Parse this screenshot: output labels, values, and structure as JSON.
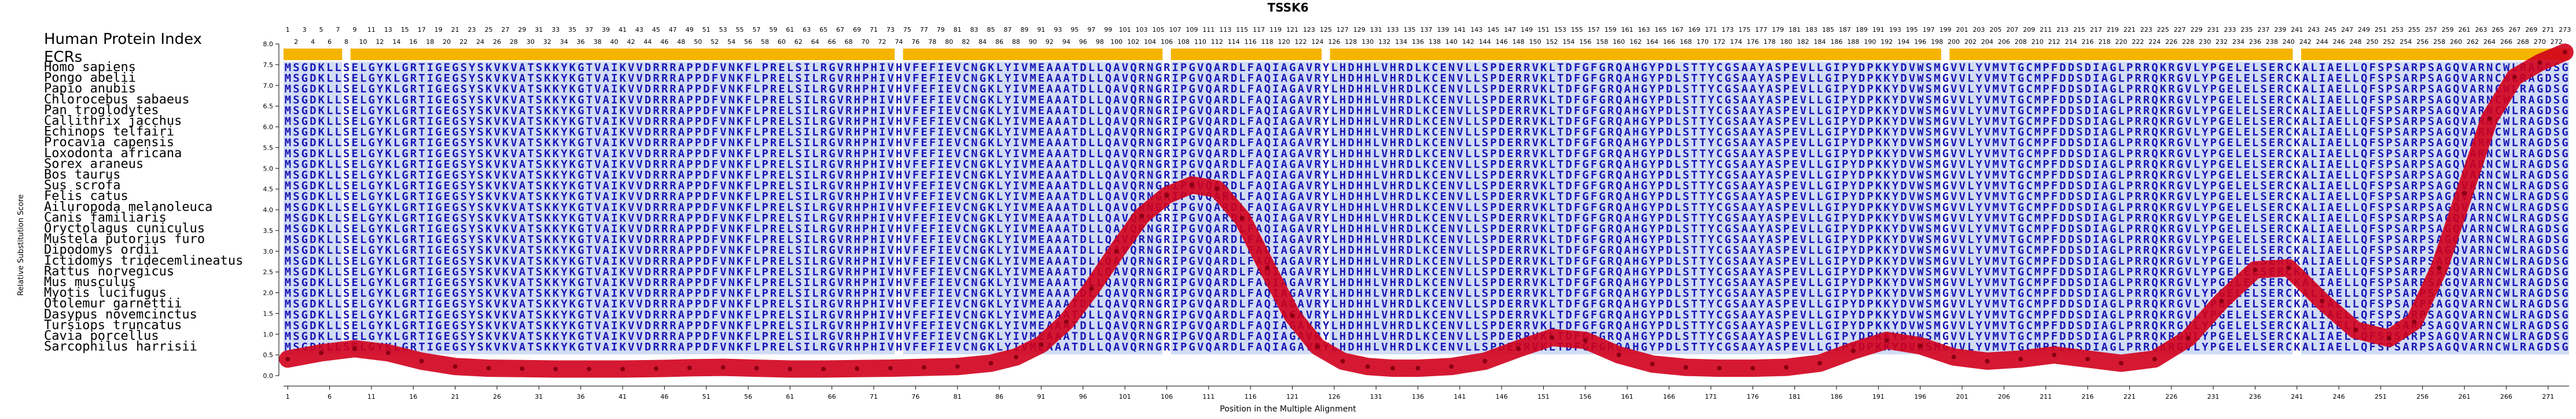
{
  "chart_data": {
    "type": "line",
    "title": "TSSK6",
    "xlabel": "Position in the Multiple Alignment",
    "ylabel": "Relative Substitution Score",
    "xlim": [
      1,
      273
    ],
    "ylim": [
      0,
      8.0
    ],
    "y_ticks": [
      0.0,
      0.5,
      1.0,
      1.5,
      2.0,
      2.5,
      3.0,
      3.5,
      4.0,
      4.5,
      5.0,
      5.5,
      6.0,
      6.5,
      7.0,
      7.5,
      8.0
    ],
    "x_ticks": [
      1,
      6,
      11,
      16,
      21,
      26,
      31,
      36,
      41,
      46,
      51,
      56,
      61,
      66,
      71,
      76,
      81,
      86,
      91,
      96,
      101,
      106,
      111,
      116,
      121,
      126,
      131,
      136,
      141,
      146,
      151,
      156,
      161,
      166,
      171,
      176,
      181,
      186,
      191,
      196,
      201,
      206,
      211,
      216,
      221,
      226,
      231,
      236,
      241,
      246,
      251,
      256,
      261,
      266,
      271
    ],
    "index_label": "Human Protein Index",
    "ecr_label": "ECRs",
    "ecr_segments": [
      [
        1,
        7
      ],
      [
        9,
        73
      ],
      [
        75,
        105
      ],
      [
        107,
        124
      ],
      [
        126,
        198
      ],
      [
        200,
        240
      ],
      [
        242,
        273
      ]
    ],
    "species": [
      "Homo sapiens",
      "Pongo abelii",
      "Papio anubis",
      "Chlorocebus sabaeus",
      "Pan troglodytes",
      "Callithrix jacchus",
      "Echinops telfairi",
      "Procavia capensis",
      "Loxodonta africana",
      "Sorex araneus",
      "Bos taurus",
      "Sus scrofa",
      "Felis catus",
      "Ailuropoda melanoleuca",
      "Canis familiaris",
      "Oryctolagus cuniculus",
      "Mustela putorius furo",
      "Dipodomys ordii",
      "Ictidomys tridecemlineatus",
      "Rattus norvegicus",
      "Mus musculus",
      "Myotis lucifugus",
      "Otolemur garnettii",
      "Dasypus novemcinctus",
      "Tursiops truncatus",
      "Cavia porcellus",
      "Sarcophilus harrisii"
    ],
    "sequence": "MSGDKLLSELGYKLGRTIGEGSYSKVKVATSKKYKGTVAIKVVDRRRAPPDFVNKFLPRELSILRGVRHPHIVHVFEFIEVCNGKLYIVMEAAATDLLQAVQRNGRIPGVQARDLFAQIAGAVRYLHDHHLVHRDLKCENVLLSPDERRVKLTDFGFGRQAHGYPDLSTTYCGSAAYASPEVLLGIPYDPKKYDVWSMGVVLYVMVTGCMPFDDSDIAGLPRRQKRGVLYPGELELSERCKALIAELLQFSPSARPSAGQVARNCWLRAGDSG",
    "score_series": {
      "name": "",
      "x": [
        1,
        5,
        9,
        13,
        17,
        21,
        25,
        29,
        33,
        37,
        41,
        45,
        49,
        53,
        57,
        61,
        65,
        69,
        73,
        77,
        81,
        85,
        88,
        91,
        94,
        97,
        100,
        103,
        106,
        109,
        112,
        115,
        118,
        121,
        124,
        127,
        130,
        133,
        136,
        140,
        144,
        148,
        152,
        156,
        160,
        164,
        168,
        172,
        176,
        180,
        184,
        188,
        192,
        196,
        200,
        204,
        208,
        212,
        216,
        220,
        224,
        228,
        232,
        236,
        240,
        244,
        248,
        252,
        255,
        258,
        261,
        264,
        267,
        270,
        273
      ],
      "y": [
        0.4,
        0.55,
        0.65,
        0.55,
        0.35,
        0.22,
        0.18,
        0.17,
        0.16,
        0.16,
        0.16,
        0.17,
        0.19,
        0.2,
        0.18,
        0.16,
        0.16,
        0.17,
        0.18,
        0.2,
        0.22,
        0.3,
        0.45,
        0.75,
        1.3,
        2.1,
        3.0,
        3.85,
        4.35,
        4.6,
        4.5,
        3.8,
        2.6,
        1.45,
        0.7,
        0.35,
        0.22,
        0.18,
        0.18,
        0.22,
        0.35,
        0.65,
        0.92,
        0.85,
        0.5,
        0.28,
        0.2,
        0.18,
        0.18,
        0.2,
        0.3,
        0.6,
        0.85,
        0.72,
        0.45,
        0.35,
        0.4,
        0.5,
        0.4,
        0.3,
        0.4,
        0.9,
        1.8,
        2.55,
        2.6,
        1.8,
        1.1,
        0.9,
        1.3,
        2.6,
        4.4,
        6.2,
        7.2,
        7.55,
        7.8
      ]
    },
    "grid": false,
    "legend": "none",
    "colors": {
      "ecr_bar": "#f5b400",
      "sequence_text": "#1818b4",
      "conserved_highlight": "#d2dcf5",
      "score_line": "#d2001c"
    }
  }
}
